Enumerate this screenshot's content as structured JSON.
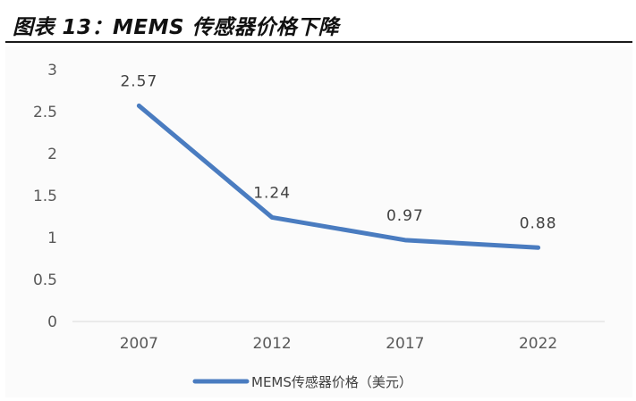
{
  "figure": {
    "title": "图表 13：MEMS 传感器价格下降"
  },
  "colors": {
    "series": "#4a7cc0",
    "axis": "#d9d9d9",
    "text": "#595959"
  },
  "chart_data": {
    "type": "line",
    "title": "",
    "xlabel": "",
    "ylabel": "",
    "categories": [
      "2007",
      "2012",
      "2017",
      "2022"
    ],
    "series": [
      {
        "name": "MEMS传感器价格（美元）",
        "values": [
          2.57,
          1.24,
          0.97,
          0.88
        ]
      }
    ],
    "data_labels": [
      "2.57",
      "1.24",
      "0.97",
      "0.88"
    ],
    "ylim": [
      0,
      3
    ],
    "y_ticks": [
      {
        "value": 0,
        "label": "0"
      },
      {
        "value": 0.5,
        "label": "0.5"
      },
      {
        "value": 1,
        "label": "1"
      },
      {
        "value": 1.5,
        "label": "1.5"
      },
      {
        "value": 2,
        "label": "2"
      },
      {
        "value": 2.5,
        "label": "2.5"
      },
      {
        "value": 3,
        "label": "3"
      }
    ],
    "grid": false,
    "legend_position": "bottom"
  }
}
